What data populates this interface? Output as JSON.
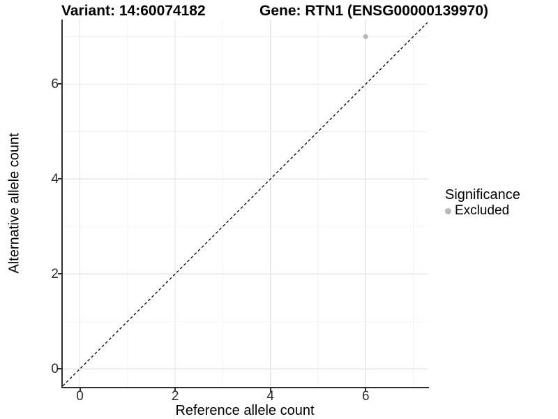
{
  "titles": {
    "variant": "Variant: 14:60074182",
    "gene": "Gene: RTN1 (ENSG00000139970)"
  },
  "axes": {
    "x_label": "Reference allele count",
    "y_label": "Alternative allele count"
  },
  "legend": {
    "title": "Significance",
    "position": "right",
    "items": [
      {
        "label": "Excluded",
        "color": "#b8b8b8"
      }
    ]
  },
  "chart_data": {
    "type": "scatter",
    "title": "Variant: 14:60074182   Gene: RTN1 (ENSG00000139970)",
    "xlabel": "Reference allele count",
    "ylabel": "Alternative allele count",
    "xlim": [
      -0.36,
      7.3
    ],
    "ylim": [
      -0.38,
      7.36
    ],
    "x_ticks": [
      0,
      2,
      4,
      6
    ],
    "y_ticks": [
      0,
      2,
      4,
      6
    ],
    "x_minor_ticks": [
      1,
      3,
      5,
      7
    ],
    "y_minor_ticks": [
      1,
      3,
      5,
      7
    ],
    "grid": true,
    "legend_position": "right",
    "series": [
      {
        "name": "Excluded",
        "color": "#b8b8b8",
        "point_radius": 3.6,
        "points": [
          {
            "x": 6,
            "y": 7
          }
        ]
      }
    ],
    "reference_line": {
      "kind": "identity",
      "linetype": "dashed",
      "color": "#000000"
    },
    "colors": {
      "grid_major": "#e4e4e4",
      "grid_minor": "#f0f0f0",
      "axis": "#2e2e2e",
      "background": "#ffffff"
    }
  }
}
